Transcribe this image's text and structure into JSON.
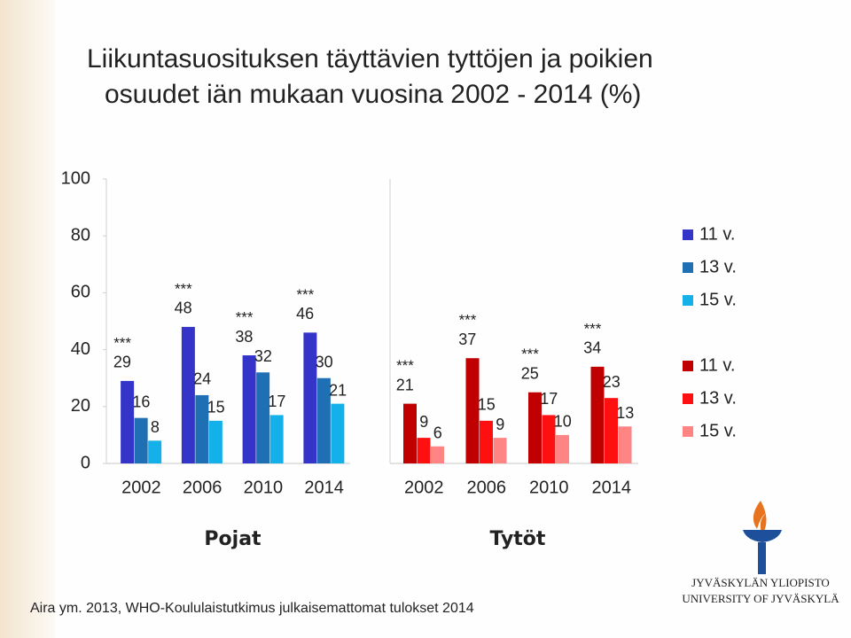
{
  "title_lines": [
    "Liikuntasuosituksen täyttävien tyttöjen ja poikien",
    "osuudet iän mukaan vuosina 2002 - 2014 (%)"
  ],
  "footnote": "Aira ym. 2013, WHO-Koululaistutkimus julkaisemattomat tulokset 2014",
  "logo": [
    "JYVÄSKYLÄN YLIOPISTO",
    "UNIVERSITY OF JYVÄSKYLÄ"
  ],
  "chart_data": [
    {
      "type": "bar",
      "title": "Pojat",
      "categories": [
        "2002",
        "2006",
        "2010",
        "2014"
      ],
      "series": [
        {
          "name": "11 v.",
          "color": "#3434c8",
          "values": [
            29,
            48,
            38,
            46
          ]
        },
        {
          "name": "13 v.",
          "color": "#1f6fb4",
          "values": [
            16,
            24,
            32,
            30
          ]
        },
        {
          "name": "15 v.",
          "color": "#14b0ea",
          "values": [
            8,
            15,
            17,
            21
          ]
        }
      ],
      "significance": [
        "***",
        "***",
        "***",
        "***"
      ],
      "ylim": [
        0,
        100
      ],
      "yticks": [
        0,
        20,
        40,
        60,
        80,
        100
      ]
    },
    {
      "type": "bar",
      "title": "Tytöt",
      "categories": [
        "2002",
        "2006",
        "2010",
        "2014"
      ],
      "series": [
        {
          "name": "11 v.",
          "color": "#c00000",
          "values": [
            21,
            37,
            25,
            34
          ]
        },
        {
          "name": "13 v.",
          "color": "#ff1010",
          "values": [
            9,
            15,
            17,
            23
          ]
        },
        {
          "name": "15 v.",
          "color": "#ff8585",
          "values": [
            6,
            9,
            10,
            13
          ]
        }
      ],
      "significance": [
        "***",
        "***",
        "***",
        "***"
      ],
      "ylim": [
        0,
        100
      ]
    }
  ]
}
